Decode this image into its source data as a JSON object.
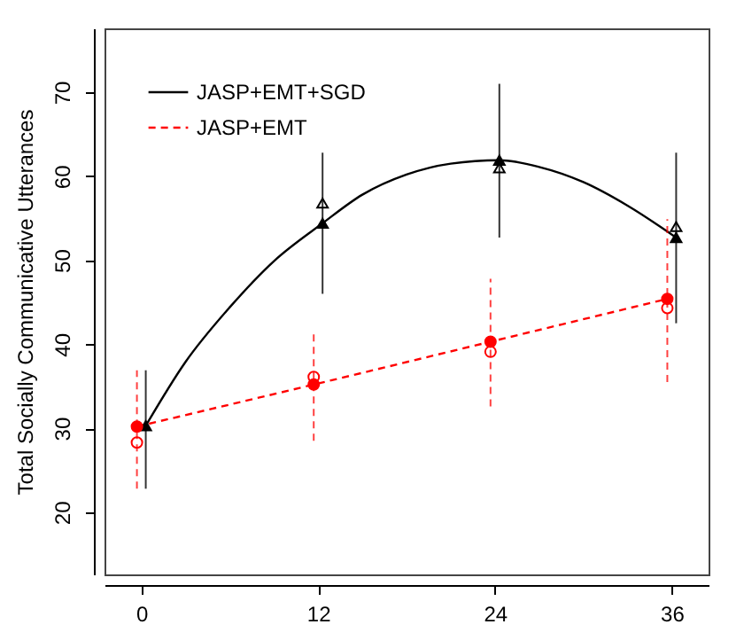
{
  "chart_data": {
    "type": "line",
    "ylabel": "Total Socially Communicative Utterances",
    "xlim": [
      -2.5,
      38.5
    ],
    "ylim": [
      12.6,
      77.6
    ],
    "xticks": [
      0,
      12,
      24,
      36
    ],
    "yticks": [
      20,
      30,
      40,
      50,
      60,
      70
    ],
    "grid": false,
    "legend": "top left",
    "series": [
      {
        "name": "JASP+EMT+SGD",
        "type": "line",
        "color": "#000000",
        "line_style": "solid",
        "marker": "none",
        "x": [
          0.3,
          3,
          6,
          9,
          12.3,
          15,
          18,
          21,
          24.3,
          27,
          30,
          33,
          36.3
        ],
        "values": [
          30.3,
          37.9,
          44.4,
          49.9,
          54.4,
          57.8,
          60.2,
          61.5,
          61.9,
          61.1,
          59.3,
          56.5,
          52.7
        ]
      },
      {
        "type": "scatter",
        "color": "#000000",
        "marker": "triangle",
        "x": [
          0.3,
          12.3,
          24.3,
          36.3
        ],
        "values": [
          30.3,
          54.4,
          61.9,
          52.7
        ],
        "errors": [
          [
            22.8,
            36.9
          ],
          [
            46.0,
            62.8
          ],
          [
            52.7,
            71.0
          ],
          [
            42.5,
            62.8
          ]
        ]
      },
      {
        "type": "scatter",
        "color": "#000000",
        "marker": "triangle",
        "x": [
          12.3,
          24.3,
          36.3
        ],
        "values": [
          56.8,
          61.0,
          54.0
        ]
      },
      {
        "name": "JASP+EMT",
        "type": "line",
        "color": "#ff0000",
        "line_style": "dashed",
        "marker": "circle",
        "x": [
          -0.3,
          11.7,
          23.7,
          35.7
        ],
        "values": [
          30.2,
          35.2,
          40.3,
          45.4
        ],
        "errors": [
          [
            22.8,
            36.9
          ],
          [
            28.5,
            41.6
          ],
          [
            32.6,
            47.8
          ],
          [
            35.5,
            54.9
          ]
        ]
      },
      {
        "type": "scatter",
        "color": "#ff0000",
        "marker": "circle",
        "x": [
          -0.3,
          11.7,
          23.7,
          35.7
        ],
        "values": [
          28.3,
          36.1,
          39.1,
          44.3
        ]
      }
    ]
  }
}
